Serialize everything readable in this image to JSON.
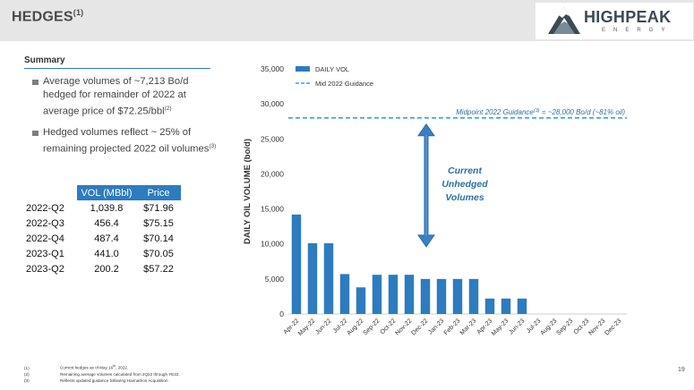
{
  "header": {
    "title": "HEDGES",
    "title_note": "(1)",
    "logo_brand": "HIGHPEAK",
    "logo_sub": "ENERGY"
  },
  "summary": {
    "heading": "Summary",
    "bullets": [
      {
        "text": "Average volumes of ~7,213 Bo/d hedged for remainder of 2022 at average price of $72.25/bbl",
        "note": "(2)"
      },
      {
        "text": "Hedged volumes reflect ~ 25% of remaining projected 2022 oil volumes",
        "note": "(3)"
      }
    ]
  },
  "table": {
    "headers": [
      "VOL (MBbl)",
      "Price"
    ],
    "rows": [
      {
        "quarter": "2022-Q2",
        "vol": "1,039.8",
        "price": "$71.96"
      },
      {
        "quarter": "2022-Q3",
        "vol": "456.4",
        "price": "$75.15"
      },
      {
        "quarter": "2022-Q4",
        "vol": "487.4",
        "price": "$70.14"
      },
      {
        "quarter": "2023-Q1",
        "vol": "441.0",
        "price": "$70.05"
      },
      {
        "quarter": "2023-Q2",
        "vol": "200.2",
        "price": "$57.22"
      }
    ]
  },
  "chart_data": {
    "type": "bar",
    "ylabel": "DAILY OIL VOLUME (bo/d)",
    "ylim": [
      0,
      35000
    ],
    "yticks": [
      "0",
      "5,000",
      "10,000",
      "15,000",
      "20,000",
      "25,000",
      "30,000",
      "35,000"
    ],
    "categories": [
      "Apr-22",
      "May-22",
      "Jun-22",
      "Jul-22",
      "Aug-22",
      "Sep-22",
      "Oct-22",
      "Nov-22",
      "Dec-22",
      "Jan-23",
      "Feb-23",
      "Mar-23",
      "Apr-23",
      "May-23",
      "Jun-23",
      "Jul-23",
      "Aug-23",
      "Sep-23",
      "Oct-23",
      "Nov-23",
      "Dec-23"
    ],
    "series": [
      {
        "name": "DAILY VOL",
        "color": "#2e7bbf",
        "values": [
          14200,
          10100,
          10100,
          5700,
          3800,
          5600,
          5600,
          5600,
          5000,
          5000,
          5000,
          5000,
          2200,
          2200,
          2200,
          0,
          0,
          0,
          0,
          0,
          0
        ]
      }
    ],
    "guidance": {
      "name": "Mid 2022 Guidance",
      "value": 28000,
      "color": "#3aa3d9",
      "annotation": "Midpoint 2022 Guidance",
      "annotation_note": "(3)",
      "annotation_tail": " = ~28,000 Bo/d (~81% oil)"
    },
    "callout": [
      "Current",
      "Unhedged",
      "Volumes"
    ],
    "legend_position": "top-left",
    "grid": false
  },
  "footnotes": [
    {
      "num": "(1)",
      "text": "Current hedges as of May 16",
      "sup": "th",
      "tail": ", 2022."
    },
    {
      "num": "(2)",
      "text": "Remaining average volumes calculated from 2Q22 through YE22.",
      "sup": "",
      "tail": ""
    },
    {
      "num": "(3)",
      "text": "Reflects updated guidance following Hannathon Acquisition",
      "sup": "",
      "tail": ""
    }
  ],
  "page_number": "19"
}
